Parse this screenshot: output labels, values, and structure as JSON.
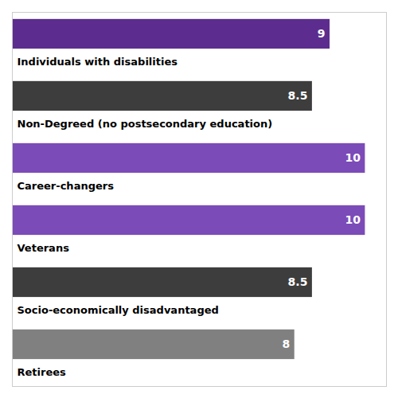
{
  "chart_data": {
    "type": "bar",
    "orientation": "horizontal",
    "categories": [
      "Individuals with disabilities",
      "Non-Degreed (no postsecondary education)",
      "Career-changers",
      "Veterans",
      "Socio-economically disadvantaged",
      "Retirees"
    ],
    "values": [
      9,
      8.5,
      10,
      10,
      8.5,
      8
    ],
    "colors": [
      "#5C2D8E",
      "#3D3D3D",
      "#7B4BB8",
      "#7B4BB8",
      "#3D3D3D",
      "#808080"
    ],
    "value_labels": [
      "9",
      "8.5",
      "10",
      "10",
      "8.5",
      "8"
    ],
    "data_labels": true,
    "xlim": [
      0,
      10.6
    ],
    "tick_labels": false
  }
}
